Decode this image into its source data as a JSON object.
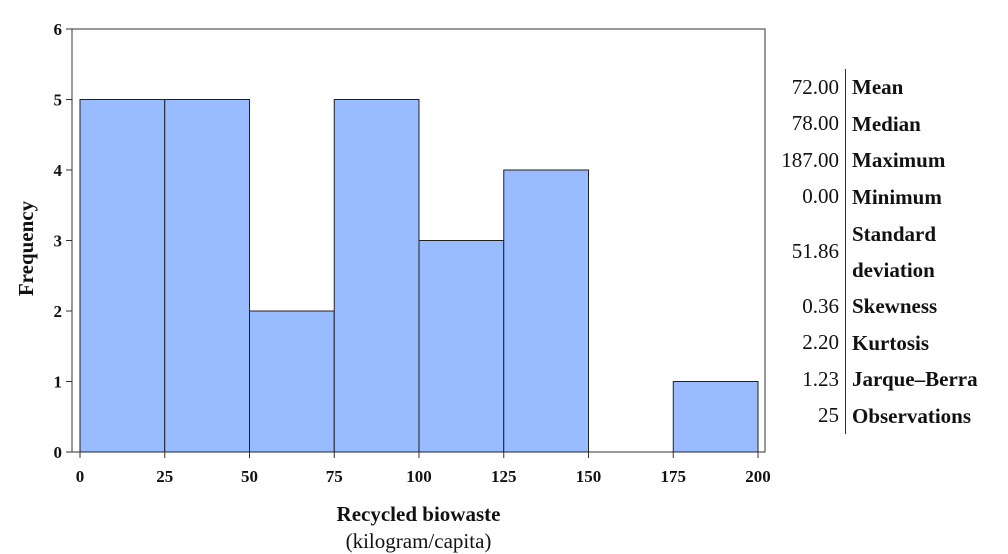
{
  "chart_data": {
    "type": "bar",
    "bins": [
      {
        "x0": 0,
        "x1": 25,
        "count": 5
      },
      {
        "x0": 25,
        "x1": 50,
        "count": 5
      },
      {
        "x0": 50,
        "x1": 75,
        "count": 2
      },
      {
        "x0": 75,
        "x1": 100,
        "count": 5
      },
      {
        "x0": 100,
        "x1": 125,
        "count": 3
      },
      {
        "x0": 125,
        "x1": 150,
        "count": 4
      },
      {
        "x0": 150,
        "x1": 175,
        "count": 0
      },
      {
        "x0": 175,
        "x1": 200,
        "count": 1
      }
    ],
    "xticks": [
      "0",
      "25",
      "50",
      "75",
      "100",
      "125",
      "150",
      "175",
      "200"
    ],
    "yticks": [
      "0",
      "1",
      "2",
      "3",
      "4",
      "5",
      "6"
    ],
    "xlim": [
      0,
      200
    ],
    "ylim": [
      0,
      6
    ],
    "xlabel": "Recycled biowaste",
    "xlabel_sub": "(kilogram/capita)",
    "ylabel": "Frequency",
    "bar_color": "#99bbff",
    "bar_edge": "#222222",
    "grid": false
  },
  "stats": [
    {
      "value": "72.00",
      "label": "Mean"
    },
    {
      "value": "78.00",
      "label": "Median"
    },
    {
      "value": "187.00",
      "label": "Maximum"
    },
    {
      "value": "0.00",
      "label": "Minimum"
    },
    {
      "value": "51.86",
      "label": "Standard\ndeviation"
    },
    {
      "value": "0.36",
      "label": "Skewness"
    },
    {
      "value": "2.20",
      "label": "Kurtosis"
    },
    {
      "value": "1.23",
      "label": "Jarque–Berra"
    },
    {
      "value": "25",
      "label": "Observations"
    }
  ]
}
